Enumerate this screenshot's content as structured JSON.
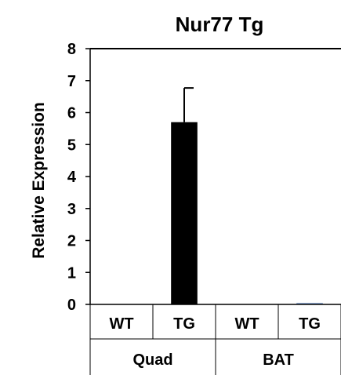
{
  "chart_data": {
    "type": "bar",
    "title": "Nur77 Tg",
    "xlabel": "",
    "ylabel": "Relative Expression",
    "ylim": [
      0,
      8
    ],
    "yticks": [
      0,
      1,
      2,
      3,
      4,
      5,
      6,
      7,
      8
    ],
    "grid": false,
    "legend": "none",
    "bar_color": "#000000",
    "error_color": "#000000",
    "groups": [
      "Quad",
      "BAT"
    ],
    "categories": [
      "WT",
      "TG",
      "WT",
      "TG"
    ],
    "category_groups": [
      0,
      0,
      1,
      1
    ],
    "values": [
      0.0,
      5.7,
      0.0,
      0.05
    ],
    "error_plus": [
      0,
      1.07,
      0,
      0.02
    ]
  }
}
